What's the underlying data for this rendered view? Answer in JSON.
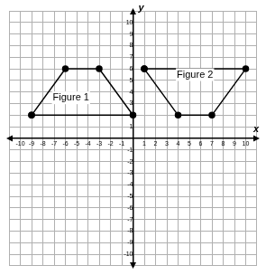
{
  "chart_data": {
    "type": "scatter",
    "xlabel": "x",
    "ylabel": "y",
    "xlim": [
      -11,
      11
    ],
    "ylim": [
      -11,
      11
    ],
    "xticks": [
      -10,
      -9,
      -8,
      -7,
      -6,
      -5,
      -4,
      -3,
      -2,
      -1,
      1,
      2,
      3,
      4,
      5,
      6,
      7,
      8,
      9,
      10
    ],
    "yticks": [
      -10,
      -9,
      -8,
      -7,
      -6,
      -5,
      -4,
      -3,
      -2,
      -1,
      1,
      2,
      3,
      4,
      5,
      6,
      7,
      8,
      9,
      10
    ],
    "grid": true,
    "series": [
      {
        "x": [
          -9,
          -6,
          -3,
          0,
          -9
        ],
        "values": [
          2,
          6,
          6,
          2,
          2
        ],
        "color": "#000000",
        "marker": "circle",
        "line_style": "solid"
      },
      {
        "x": [
          1,
          10,
          7,
          4,
          1
        ],
        "values": [
          6,
          6,
          2,
          2,
          6
        ],
        "color": "#000000",
        "marker": "circle",
        "line_style": "solid"
      }
    ],
    "annotations": [
      {
        "text": "Figure 1",
        "x": -5.5,
        "y": 3.5
      },
      {
        "text": "Figure 2",
        "x": 5.5,
        "y": 5.5
      }
    ]
  }
}
